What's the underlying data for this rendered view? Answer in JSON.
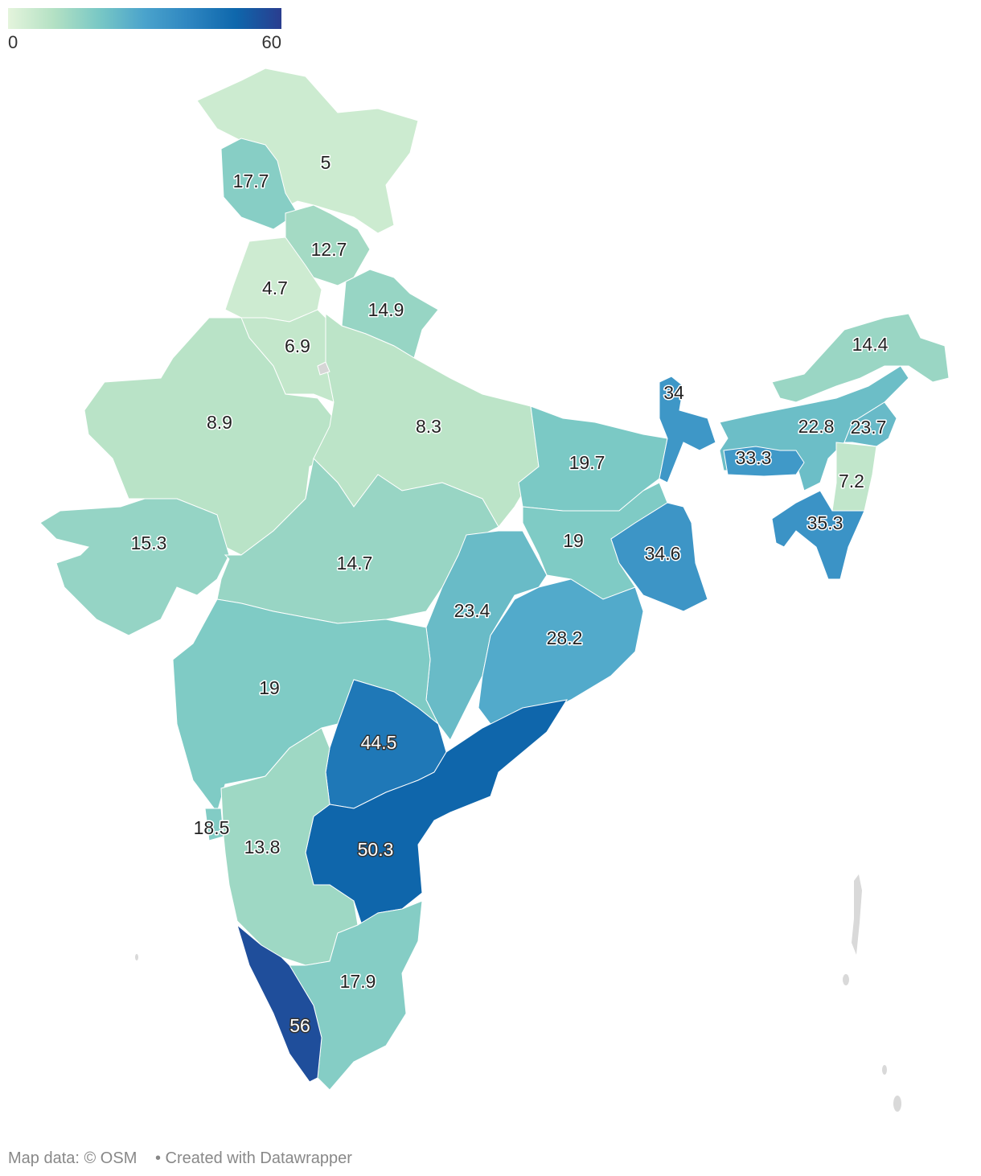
{
  "legend": {
    "range": [
      0,
      60
    ],
    "ticks": [
      0,
      60
    ],
    "colors": [
      "#e4f4dc",
      "#b4e1c4",
      "#79c8c5",
      "#4aa3cc",
      "#2d85c0",
      "#0e67ac",
      "#2a3d8f"
    ]
  },
  "regions": [
    {
      "value": 5
    },
    {
      "value": 17.7
    },
    {
      "value": 12.7
    },
    {
      "value": 4.7
    },
    {
      "value": 14.9
    },
    {
      "value": 6.9
    },
    {
      "value": 8.9
    },
    {
      "value": 8.3
    },
    {
      "value": 19.7
    },
    {
      "value": 15.3
    },
    {
      "value": 14.7
    },
    {
      "value": 19
    },
    {
      "value": 34.6
    },
    {
      "value": 34
    },
    {
      "value": 22.8
    },
    {
      "value": 14.4
    },
    {
      "value": 23.7
    },
    {
      "value": 33.3
    },
    {
      "value": 7.2
    },
    {
      "value": 35.3
    },
    {
      "value": 23.4
    },
    {
      "value": 28.2
    },
    {
      "value": 19
    },
    {
      "value": 44.5
    },
    {
      "value": 50.3
    },
    {
      "value": 18.5
    },
    {
      "value": 13.8
    },
    {
      "value": 17.9
    },
    {
      "value": 56
    }
  ],
  "footer": {
    "credit": "Map data: © OSM",
    "tool": "• Created with Datawrapper"
  }
}
